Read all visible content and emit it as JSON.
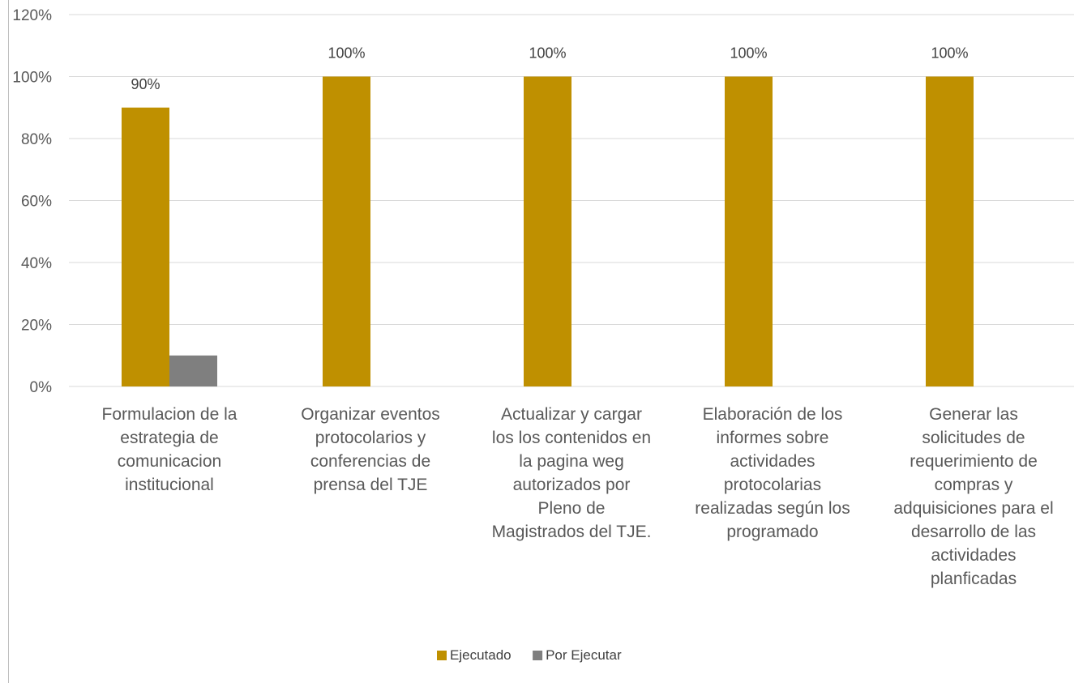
{
  "chart_data": {
    "type": "bar",
    "categories": [
      [
        "Formulacion de la",
        "estrategia de",
        "comunicacion",
        "institucional"
      ],
      [
        "Organizar eventos",
        "protocolarios y",
        "conferencias de",
        "prensa del TJE"
      ],
      [
        "Actualizar y cargar",
        "los los contenidos en",
        "la pagina weg",
        "autorizados por",
        "Pleno de",
        "Magistrados del TJE."
      ],
      [
        "Elaboración de los",
        "informes sobre",
        "actividades",
        "protocolarias",
        "realizadas según los",
        "programado"
      ],
      [
        "Generar las",
        "solicitudes de",
        "requerimiento de",
        "compras y",
        "adquisiciones para el",
        "desarrollo de las",
        "actividades",
        "planficadas"
      ]
    ],
    "series": [
      {
        "name": "Ejecutado",
        "values": [
          90,
          100,
          100,
          100,
          100
        ],
        "color": "#bf9000",
        "labels": [
          "90%",
          "100%",
          "100%",
          "100%",
          "100%"
        ]
      },
      {
        "name": "Por Ejecutar",
        "values": [
          10,
          0,
          0,
          0,
          0
        ],
        "color": "#7f7f7f",
        "labels": []
      }
    ],
    "yticks": [
      "0%",
      "20%",
      "40%",
      "60%",
      "80%",
      "100%",
      "120%"
    ],
    "ylim": [
      0,
      120
    ],
    "grid": true,
    "legend_position": "bottom"
  }
}
